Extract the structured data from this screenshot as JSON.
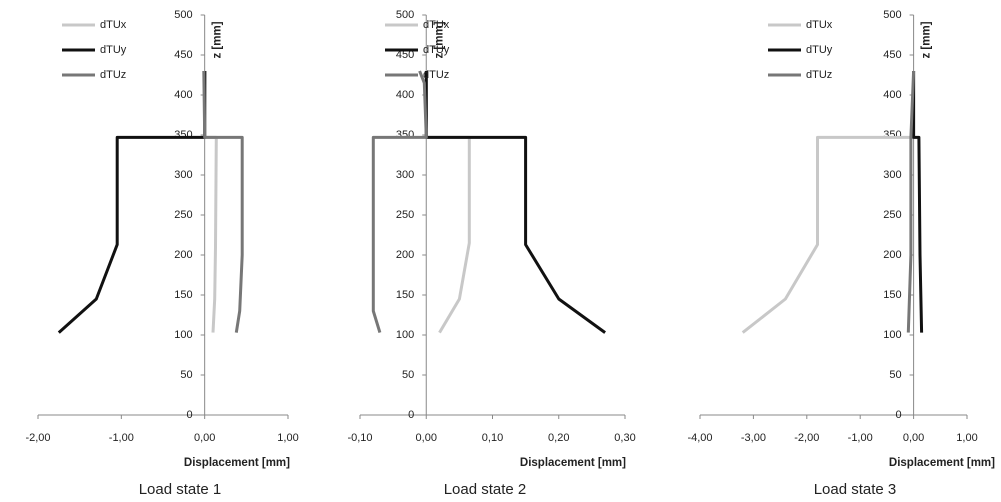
{
  "chart_data": [
    {
      "type": "line",
      "title": "Load state 1",
      "x_label": "Displacement [mm]",
      "y_label": "z [mm]",
      "legend": "upper left",
      "xlim": [
        -2,
        1
      ],
      "ylim": [
        0,
        500
      ],
      "xticks": [
        {
          "value": -2,
          "label": "-2,00"
        },
        {
          "value": -1,
          "label": "-1,00"
        },
        {
          "value": 0,
          "label": "0,00"
        },
        {
          "value": 1,
          "label": "1,00"
        }
      ],
      "yticks": [
        0,
        50,
        100,
        150,
        200,
        250,
        300,
        350,
        400,
        450,
        500
      ],
      "series": [
        {
          "name": "dTUx",
          "color": "#c8c8c8",
          "x": [
            0.1,
            0.12,
            0.13,
            0.14,
            0,
            0.01
          ],
          "values": [
            103,
            145,
            210,
            347,
            347,
            430
          ]
        },
        {
          "name": "dTUy",
          "color": "#111111",
          "x": [
            -1.75,
            -1.3,
            -1.05,
            -1.05,
            0,
            0
          ],
          "values": [
            103,
            145,
            213,
            347,
            347,
            430
          ]
        },
        {
          "name": "dTUz",
          "color": "#777777",
          "x": [
            0.38,
            0.42,
            0.45,
            0.45,
            0,
            -0.01
          ],
          "values": [
            103,
            130,
            200,
            347,
            347,
            430
          ]
        }
      ]
    },
    {
      "type": "line",
      "title": "Load state 2",
      "x_label": "Displacement [mm]",
      "y_label": "z [mm]",
      "legend": "upper left",
      "xlim": [
        -0.1,
        0.3
      ],
      "ylim": [
        0,
        500
      ],
      "xticks": [
        {
          "value": -0.1,
          "label": "-0,10"
        },
        {
          "value": 0,
          "label": "0,00"
        },
        {
          "value": 0.1,
          "label": "0,10"
        },
        {
          "value": 0.2,
          "label": "0,20"
        },
        {
          "value": 0.3,
          "label": "0,30"
        }
      ],
      "yticks": [
        0,
        50,
        100,
        150,
        200,
        250,
        300,
        350,
        400,
        450,
        500
      ],
      "series": [
        {
          "name": "dTUx",
          "color": "#c8c8c8",
          "x": [
            0.02,
            0.05,
            0.065,
            0.065,
            0,
            0
          ],
          "values": [
            103,
            145,
            215,
            347,
            347,
            430
          ]
        },
        {
          "name": "dTUy",
          "color": "#111111",
          "x": [
            0.27,
            0.2,
            0.15,
            0.15,
            0,
            0
          ],
          "values": [
            103,
            145,
            213,
            347,
            347,
            430
          ]
        },
        {
          "name": "dTUz",
          "color": "#777777",
          "x": [
            -0.07,
            -0.08,
            -0.08,
            -0.08,
            0,
            -0.003,
            -0.01
          ],
          "values": [
            103,
            130,
            200,
            347,
            347,
            415,
            430
          ]
        }
      ]
    },
    {
      "type": "line",
      "title": "Load state 3",
      "x_label": "Displacement [mm]",
      "y_label": "z [mm]",
      "legend": "upper left",
      "xlim": [
        -4,
        1
      ],
      "ylim": [
        0,
        500
      ],
      "xticks": [
        {
          "value": -4,
          "label": "-4,00"
        },
        {
          "value": -3,
          "label": "-3,00"
        },
        {
          "value": -2,
          "label": "-2,00"
        },
        {
          "value": -1,
          "label": "-1,00"
        },
        {
          "value": 0,
          "label": "0,00"
        },
        {
          "value": 1,
          "label": "1,00"
        }
      ],
      "yticks": [
        0,
        50,
        100,
        150,
        200,
        250,
        300,
        350,
        400,
        450,
        500
      ],
      "series": [
        {
          "name": "dTUx",
          "color": "#c8c8c8",
          "x": [
            -3.2,
            -2.4,
            -1.8,
            -1.8,
            0,
            0
          ],
          "values": [
            103,
            145,
            213,
            347,
            347,
            430
          ]
        },
        {
          "name": "dTUy",
          "color": "#111111",
          "x": [
            0.15,
            0.12,
            0.1,
            0,
            0
          ],
          "values": [
            103,
            200,
            347,
            347,
            430
          ]
        },
        {
          "name": "dTUz",
          "color": "#777777",
          "x": [
            -0.1,
            -0.05,
            -0.05,
            0
          ],
          "values": [
            103,
            200,
            347,
            430
          ]
        }
      ]
    }
  ]
}
